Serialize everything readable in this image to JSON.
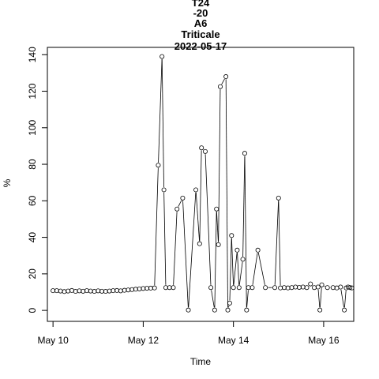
{
  "chart_data": {
    "type": "line",
    "title_lines": [
      "T24",
      "-20",
      "A6",
      "Triticale",
      "2022-05-17"
    ],
    "xlabel": "Time",
    "ylabel": "%",
    "x_ticks": [
      {
        "x": "2022-05-10",
        "label": "May 10"
      },
      {
        "x": "2022-05-12",
        "label": "May 12"
      },
      {
        "x": "2022-05-14",
        "label": "May 14"
      },
      {
        "x": "2022-05-16",
        "label": "May 16"
      }
    ],
    "y_ticks": [
      0,
      20,
      40,
      60,
      80,
      100,
      120,
      140
    ],
    "xlim": [
      "2022-05-09 21:00",
      "2022-05-16 16:00"
    ],
    "ylim": [
      -6,
      144
    ],
    "grid": false,
    "series": [
      {
        "points": [
          {
            "x": "2022-05-10 00:00",
            "y": 10.8
          },
          {
            "x": "2022-05-10 02:00",
            "y": 10.8
          },
          {
            "x": "2022-05-10 04:00",
            "y": 10.6
          },
          {
            "x": "2022-05-10 06:00",
            "y": 10.3
          },
          {
            "x": "2022-05-10 08:00",
            "y": 10.6
          },
          {
            "x": "2022-05-10 10:00",
            "y": 10.9
          },
          {
            "x": "2022-05-10 12:00",
            "y": 10.4
          },
          {
            "x": "2022-05-10 14:00",
            "y": 10.7
          },
          {
            "x": "2022-05-10 16:00",
            "y": 10.5
          },
          {
            "x": "2022-05-10 18:00",
            "y": 10.8
          },
          {
            "x": "2022-05-10 20:00",
            "y": 10.6
          },
          {
            "x": "2022-05-10 22:00",
            "y": 10.4
          },
          {
            "x": "2022-05-11 00:00",
            "y": 10.7
          },
          {
            "x": "2022-05-11 02:00",
            "y": 10.5
          },
          {
            "x": "2022-05-11 04:00",
            "y": 10.4
          },
          {
            "x": "2022-05-11 06:00",
            "y": 10.6
          },
          {
            "x": "2022-05-11 08:00",
            "y": 10.8
          },
          {
            "x": "2022-05-11 10:00",
            "y": 10.9
          },
          {
            "x": "2022-05-11 12:00",
            "y": 10.7
          },
          {
            "x": "2022-05-11 14:00",
            "y": 11.0
          },
          {
            "x": "2022-05-11 16:00",
            "y": 11.2
          },
          {
            "x": "2022-05-11 18:00",
            "y": 11.4
          },
          {
            "x": "2022-05-11 20:00",
            "y": 11.6
          },
          {
            "x": "2022-05-11 22:00",
            "y": 11.8
          },
          {
            "x": "2022-05-12 00:00",
            "y": 12.0
          },
          {
            "x": "2022-05-12 02:00",
            "y": 12.1
          },
          {
            "x": "2022-05-12 04:00",
            "y": 12.2
          },
          {
            "x": "2022-05-12 06:00",
            "y": 12.3
          },
          {
            "x": "2022-05-12 08:00",
            "y": 79.5
          },
          {
            "x": "2022-05-12 10:00",
            "y": 139.0
          },
          {
            "x": "2022-05-12 11:00",
            "y": 66.0
          },
          {
            "x": "2022-05-12 12:00",
            "y": 12.5
          },
          {
            "x": "2022-05-12 14:00",
            "y": 12.5
          },
          {
            "x": "2022-05-12 16:00",
            "y": 12.5
          },
          {
            "x": "2022-05-12 18:00",
            "y": 55.5
          },
          {
            "x": "2022-05-12 21:00",
            "y": 61.5
          },
          {
            "x": "2022-05-13 00:00",
            "y": 0.2
          },
          {
            "x": "2022-05-13 04:00",
            "y": 66.0
          },
          {
            "x": "2022-05-13 06:00",
            "y": 36.5
          },
          {
            "x": "2022-05-13 07:00",
            "y": 89.0
          },
          {
            "x": "2022-05-13 09:00",
            "y": 87.0
          },
          {
            "x": "2022-05-13 12:00",
            "y": 12.5
          },
          {
            "x": "2022-05-13 14:00",
            "y": 0.2
          },
          {
            "x": "2022-05-13 15:00",
            "y": 55.5
          },
          {
            "x": "2022-05-13 16:00",
            "y": 36.0
          },
          {
            "x": "2022-05-13 17:00",
            "y": 122.5
          },
          {
            "x": "2022-05-13 20:00",
            "y": 128.0
          },
          {
            "x": "2022-05-13 21:00",
            "y": 0.2
          },
          {
            "x": "2022-05-13 22:00",
            "y": 4.0
          },
          {
            "x": "2022-05-13 23:00",
            "y": 41.0
          },
          {
            "x": "2022-05-14 00:00",
            "y": 12.5
          },
          {
            "x": "2022-05-14 02:00",
            "y": 33.0
          },
          {
            "x": "2022-05-14 03:00",
            "y": 12.5
          },
          {
            "x": "2022-05-14 05:00",
            "y": 28.0
          },
          {
            "x": "2022-05-14 06:00",
            "y": 86.0
          },
          {
            "x": "2022-05-14 07:00",
            "y": 0.2
          },
          {
            "x": "2022-05-14 08:00",
            "y": 12.5
          },
          {
            "x": "2022-05-14 10:00",
            "y": 12.5
          },
          {
            "x": "2022-05-14 13:00",
            "y": 33.0
          },
          {
            "x": "2022-05-14 17:00",
            "y": 12.5
          },
          {
            "x": "2022-05-14 22:00",
            "y": 12.5
          },
          {
            "x": "2022-05-15 00:00",
            "y": 61.5
          },
          {
            "x": "2022-05-15 01:00",
            "y": 12.3
          },
          {
            "x": "2022-05-15 03:00",
            "y": 12.5
          },
          {
            "x": "2022-05-15 05:00",
            "y": 12.3
          },
          {
            "x": "2022-05-15 07:00",
            "y": 12.5
          },
          {
            "x": "2022-05-15 09:00",
            "y": 12.8
          },
          {
            "x": "2022-05-15 11:00",
            "y": 12.6
          },
          {
            "x": "2022-05-15 13:00",
            "y": 12.8
          },
          {
            "x": "2022-05-15 15:00",
            "y": 12.5
          },
          {
            "x": "2022-05-15 17:00",
            "y": 14.5
          },
          {
            "x": "2022-05-15 19:00",
            "y": 12.5
          },
          {
            "x": "2022-05-15 21:00",
            "y": 12.8
          },
          {
            "x": "2022-05-15 22:00",
            "y": 0.2
          },
          {
            "x": "2022-05-15 23:00",
            "y": 14.0
          },
          {
            "x": "2022-05-16 02:00",
            "y": 12.5
          },
          {
            "x": "2022-05-16 05:00",
            "y": 12.5
          },
          {
            "x": "2022-05-16 07:00",
            "y": 12.3
          },
          {
            "x": "2022-05-16 09:00",
            "y": 12.8
          },
          {
            "x": "2022-05-16 11:00",
            "y": 0.2
          },
          {
            "x": "2022-05-16 12:00",
            "y": 12.3
          },
          {
            "x": "2022-05-16 13:00",
            "y": 12.8
          },
          {
            "x": "2022-05-16 14:00",
            "y": 12.5
          },
          {
            "x": "2022-05-16 15:00",
            "y": 12.3
          }
        ]
      }
    ]
  }
}
